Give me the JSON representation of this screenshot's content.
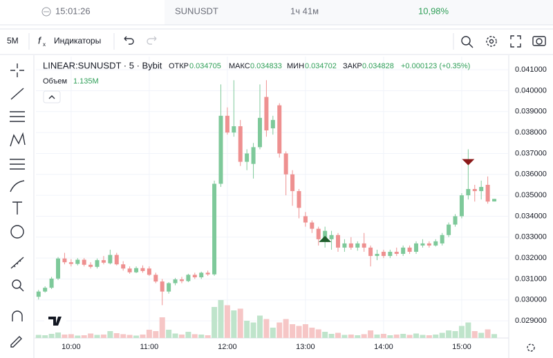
{
  "header": {
    "time": "15:01:26",
    "symbol": "SUNUSDT",
    "countdown": "1ч 41м",
    "change": "10,98%"
  },
  "toolbar": {
    "interval": "5M",
    "indicators": "Индикаторы"
  },
  "chart_data": {
    "type": "candlestick",
    "title": "LINEAR:SUNUSDT · 5 · Bybit",
    "legend": {
      "open": "ОТКР",
      "high": "МАКС",
      "low": "МИН",
      "close": "ЗАКР",
      "change": "+0.000123 (+0.35%)"
    },
    "volume_title": "Объем",
    "volume_label": "1.135M",
    "up_color": "#7ec99a",
    "down_color": "#ee9090",
    "volume_up_color": "#bfe4cb",
    "volume_down_color": "#f6c6c6",
    "grid": true,
    "x": [
      575,
      580,
      585,
      590,
      595,
      600,
      605,
      610,
      615,
      620,
      625,
      630,
      635,
      640,
      645,
      650,
      655,
      660,
      665,
      670,
      675,
      680,
      685,
      690,
      695,
      700,
      705,
      710,
      715,
      720,
      725,
      730,
      735,
      740,
      745,
      750,
      755,
      760,
      765,
      770,
      775,
      780,
      785,
      790,
      795,
      800,
      805,
      810,
      815,
      820,
      825,
      830,
      835,
      840,
      845,
      850,
      855,
      860,
      865,
      870,
      875,
      880,
      885,
      890,
      895,
      900,
      905,
      910,
      915,
      920,
      925
    ],
    "open": [
      0.03015,
      0.0304,
      0.03058,
      0.03102,
      0.03198,
      0.0318,
      0.03172,
      0.03192,
      0.03168,
      0.03158,
      0.0319,
      0.03175,
      0.03215,
      0.0317,
      0.0315,
      0.03132,
      0.03152,
      0.0315,
      0.0312,
      0.03088,
      0.0304,
      0.0308,
      0.03098,
      0.0309,
      0.0312,
      0.03108,
      0.0313,
      0.03122,
      0.03555,
      0.0388,
      0.038,
      0.0383,
      0.0366,
      0.0365,
      0.0373,
      0.0397,
      0.0382,
      0.0393,
      0.037,
      0.036,
      0.0352,
      0.034,
      0.0337,
      0.0334,
      0.0328,
      0.0329,
      0.0331,
      0.0325,
      0.0327,
      0.0325,
      0.0327,
      0.0325,
      0.0321,
      0.0323,
      0.0321,
      0.0323,
      0.0322,
      0.0325,
      0.0323,
      0.0326,
      0.0327,
      0.0326,
      0.0327,
      0.0331,
      0.0336,
      0.034,
      0.035,
      0.0353,
      0.0352,
      0.0355,
      0.034705
    ],
    "high": [
      0.03048,
      0.03065,
      0.0311,
      0.03205,
      0.03225,
      0.03195,
      0.032,
      0.032,
      0.0318,
      0.03198,
      0.0321,
      0.0324,
      0.03225,
      0.03185,
      0.0316,
      0.0316,
      0.03165,
      0.0316,
      0.0313,
      0.031,
      0.03085,
      0.03105,
      0.0311,
      0.03125,
      0.0313,
      0.03135,
      0.0314,
      0.0357,
      0.0403,
      0.0392,
      0.0405,
      0.0386,
      0.0372,
      0.0375,
      0.0403,
      0.0405,
      0.0388,
      0.0394,
      0.0371,
      0.0362,
      0.0353,
      0.0342,
      0.0338,
      0.0335,
      0.0335,
      0.0333,
      0.0332,
      0.0329,
      0.033,
      0.0328,
      0.0332,
      0.0326,
      0.0324,
      0.0324,
      0.0324,
      0.0325,
      0.0326,
      0.0326,
      0.0328,
      0.0329,
      0.0328,
      0.0329,
      0.0332,
      0.0337,
      0.0341,
      0.0351,
      0.0372,
      0.0355,
      0.0357,
      0.0359,
      0.034833
    ],
    "low": [
      0.03002,
      0.03035,
      0.03052,
      0.03095,
      0.0317,
      0.0316,
      0.03165,
      0.0316,
      0.0315,
      0.0315,
      0.0317,
      0.0317,
      0.03165,
      0.0314,
      0.03125,
      0.03128,
      0.0313,
      0.03115,
      0.0308,
      0.02975,
      0.0303,
      0.0307,
      0.0308,
      0.03085,
      0.031,
      0.031,
      0.03115,
      0.03115,
      0.0354,
      0.0379,
      0.0378,
      0.0364,
      0.0362,
      0.0358,
      0.0372,
      0.0378,
      0.0379,
      0.0368,
      0.035,
      0.0345,
      0.0339,
      0.0335,
      0.0332,
      0.0326,
      0.0325,
      0.0324,
      0.0323,
      0.0323,
      0.0324,
      0.03235,
      0.0323,
      0.0316,
      0.0319,
      0.032,
      0.032,
      0.0321,
      0.0321,
      0.0322,
      0.0322,
      0.0325,
      0.0325,
      0.03255,
      0.0326,
      0.033,
      0.0335,
      0.0339,
      0.0348,
      0.0347,
      0.0348,
      0.0346,
      0.034702
    ],
    "close": [
      0.0304,
      0.03058,
      0.03102,
      0.03198,
      0.0318,
      0.03172,
      0.03192,
      0.03168,
      0.03158,
      0.0319,
      0.03178,
      0.03215,
      0.0317,
      0.0315,
      0.03132,
      0.03152,
      0.03138,
      0.0312,
      0.03088,
      0.0304,
      0.0308,
      0.03098,
      0.0309,
      0.0312,
      0.03108,
      0.0313,
      0.03122,
      0.03555,
      0.0388,
      0.038,
      0.0383,
      0.0366,
      0.037,
      0.0373,
      0.0387,
      0.0381,
      0.0386,
      0.037,
      0.036,
      0.0352,
      0.0344,
      0.0337,
      0.0334,
      0.0329,
      0.0333,
      0.0331,
      0.0325,
      0.0327,
      0.0325,
      0.0327,
      0.0325,
      0.0321,
      0.0322,
      0.0321,
      0.0323,
      0.0322,
      0.0325,
      0.0323,
      0.0327,
      0.0327,
      0.0326,
      0.0328,
      0.0331,
      0.0336,
      0.034,
      0.035,
      0.0353,
      0.0352,
      0.0354,
      0.0347,
      0.034828
    ],
    "volume": [
      900000,
      800000,
      1200000,
      1600000,
      1000000,
      1100000,
      700000,
      800000,
      1300000,
      900000,
      1000000,
      2000000,
      1400000,
      1100000,
      900000,
      700000,
      1000000,
      2400000,
      2000000,
      6000000,
      2400000,
      1300000,
      1000000,
      1800000,
      1100000,
      1000000,
      800000,
      9000000,
      11000000,
      9500000,
      8000000,
      8500000,
      5000000,
      4500000,
      6500000,
      5500000,
      3000000,
      4500000,
      5500000,
      4000000,
      3500000,
      4000000,
      3000000,
      2500000,
      1800000,
      1200000,
      1500000,
      900000,
      1000000,
      800000,
      1100000,
      2200000,
      1000000,
      1200000,
      800000,
      1000000,
      1200000,
      900000,
      1300000,
      900000,
      800000,
      1000000,
      1500000,
      2200000,
      2000000,
      3500000,
      4500000,
      2000000,
      1500000,
      2500000,
      1135000
    ],
    "markers": [
      {
        "x": 795,
        "value": 0.0329,
        "direction": "up",
        "color": "#1f5e2c"
      },
      {
        "x": 905,
        "value": 0.0366,
        "direction": "down",
        "color": "#8b1a1a"
      }
    ],
    "xlim": [
      573,
      935.6
    ],
    "ylim": [
      0.02818,
      0.04163
    ],
    "xticks": [
      {
        "value": 600,
        "label": "10:00"
      },
      {
        "value": 660,
        "label": "11:00"
      },
      {
        "value": 720,
        "label": "12:00"
      },
      {
        "value": 780,
        "label": "13:00"
      },
      {
        "value": 840,
        "label": "14:00"
      },
      {
        "value": 900,
        "label": "15:00"
      }
    ],
    "yticks": [
      {
        "value": 0.029,
        "label": "0.029000"
      },
      {
        "value": 0.03,
        "label": "0.030000"
      },
      {
        "value": 0.031,
        "label": "0.031000"
      },
      {
        "value": 0.032,
        "label": "0.032000"
      },
      {
        "value": 0.033,
        "label": "0.033000"
      },
      {
        "value": 0.034,
        "label": "0.034000"
      },
      {
        "value": 0.035,
        "label": "0.035000"
      },
      {
        "value": 0.036,
        "label": "0.036000"
      },
      {
        "value": 0.037,
        "label": "0.037000"
      },
      {
        "value": 0.038,
        "label": "0.038000"
      },
      {
        "value": 0.039,
        "label": "0.039000"
      },
      {
        "value": 0.04,
        "label": "0.040000"
      },
      {
        "value": 0.041,
        "label": "0.041000"
      }
    ]
  }
}
